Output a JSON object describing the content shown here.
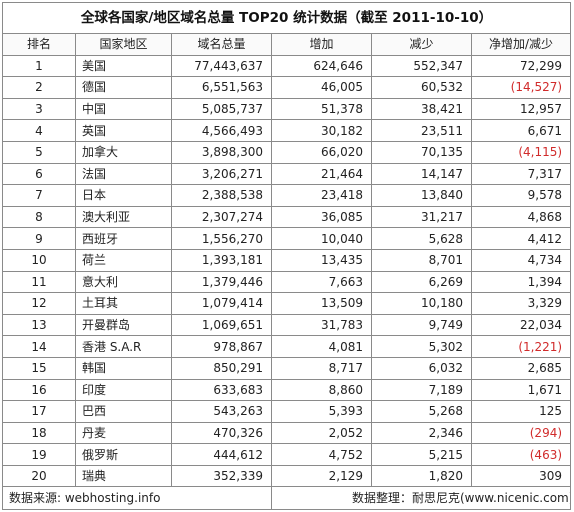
{
  "title": "全球各国家/地区域名总量 TOP20 统计数据（截至 2011-10-10）",
  "headers": [
    "排名",
    "国家地区",
    "域名总量",
    "增加",
    "减少",
    "净增加/减少"
  ],
  "rows": [
    {
      "rank": "1",
      "name": "美国",
      "total": "77,443,637",
      "added": "624,646",
      "removed": "552,347",
      "net": "72,299",
      "neg": false
    },
    {
      "rank": "2",
      "name": "德国",
      "total": "6,551,563",
      "added": "46,005",
      "removed": "60,532",
      "net": "(14,527)",
      "neg": true
    },
    {
      "rank": "3",
      "name": "中国",
      "total": "5,085,737",
      "added": "51,378",
      "removed": "38,421",
      "net": "12,957",
      "neg": false
    },
    {
      "rank": "4",
      "name": "英国",
      "total": "4,566,493",
      "added": "30,182",
      "removed": "23,511",
      "net": "6,671",
      "neg": false
    },
    {
      "rank": "5",
      "name": "加拿大",
      "total": "3,898,300",
      "added": "66,020",
      "removed": "70,135",
      "net": "(4,115)",
      "neg": true
    },
    {
      "rank": "6",
      "name": "法国",
      "total": "3,206,271",
      "added": "21,464",
      "removed": "14,147",
      "net": "7,317",
      "neg": false
    },
    {
      "rank": "7",
      "name": "日本",
      "total": "2,388,538",
      "added": "23,418",
      "removed": "13,840",
      "net": "9,578",
      "neg": false
    },
    {
      "rank": "8",
      "name": "澳大利亚",
      "total": "2,307,274",
      "added": "36,085",
      "removed": "31,217",
      "net": "4,868",
      "neg": false
    },
    {
      "rank": "9",
      "name": "西班牙",
      "total": "1,556,270",
      "added": "10,040",
      "removed": "5,628",
      "net": "4,412",
      "neg": false
    },
    {
      "rank": "10",
      "name": "荷兰",
      "total": "1,393,181",
      "added": "13,435",
      "removed": "8,701",
      "net": "4,734",
      "neg": false
    },
    {
      "rank": "11",
      "name": "意大利",
      "total": "1,379,446",
      "added": "7,663",
      "removed": "6,269",
      "net": "1,394",
      "neg": false
    },
    {
      "rank": "12",
      "name": "土耳其",
      "total": "1,079,414",
      "added": "13,509",
      "removed": "10,180",
      "net": "3,329",
      "neg": false
    },
    {
      "rank": "13",
      "name": "开曼群岛",
      "total": "1,069,651",
      "added": "31,783",
      "removed": "9,749",
      "net": "22,034",
      "neg": false
    },
    {
      "rank": "14",
      "name": "香港 S.A.R",
      "total": "978,867",
      "added": "4,081",
      "removed": "5,302",
      "net": "(1,221)",
      "neg": true
    },
    {
      "rank": "15",
      "name": "韩国",
      "total": "850,291",
      "added": "8,717",
      "removed": "6,032",
      "net": "2,685",
      "neg": false
    },
    {
      "rank": "16",
      "name": "印度",
      "total": "633,683",
      "added": "8,860",
      "removed": "7,189",
      "net": "1,671",
      "neg": false
    },
    {
      "rank": "17",
      "name": "巴西",
      "total": "543,263",
      "added": "5,393",
      "removed": "5,268",
      "net": "125",
      "neg": false
    },
    {
      "rank": "18",
      "name": "丹麦",
      "total": "470,326",
      "added": "2,052",
      "removed": "2,346",
      "net": "(294)",
      "neg": true
    },
    {
      "rank": "19",
      "name": "俄罗斯",
      "total": "444,612",
      "added": "4,752",
      "removed": "5,215",
      "net": "(463)",
      "neg": true
    },
    {
      "rank": "20",
      "name": "瑞典",
      "total": "352,339",
      "added": "2,129",
      "removed": "1,820",
      "net": "309",
      "neg": false
    }
  ],
  "footer": {
    "source": "数据来源: webhosting.info",
    "organizer": "数据整理：耐思尼克(www.nicenic.com)"
  },
  "colors": {
    "negative": "#d12b2b",
    "border": "#8a8a8a"
  }
}
